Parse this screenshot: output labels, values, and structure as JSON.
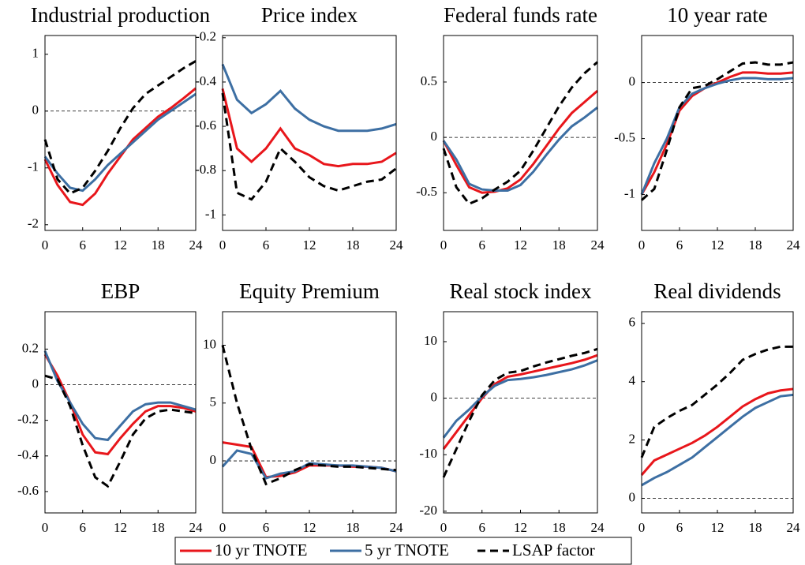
{
  "chart_data": [
    {
      "type": "line",
      "title": "Industrial production",
      "x": [
        0,
        2,
        4,
        6,
        8,
        10,
        12,
        14,
        16,
        18,
        20,
        22,
        24
      ],
      "xlim": [
        0,
        24
      ],
      "xticks": [
        0,
        6,
        12,
        18,
        24
      ],
      "ylim": [
        -2.1,
        1.33
      ],
      "yticks": [
        -2,
        -1,
        0,
        1
      ],
      "reference_line": 0,
      "series": [
        {
          "name": "10 yr TNOTE",
          "color": "#e8161b",
          "line_style": "solid",
          "values": [
            -0.85,
            -1.3,
            -1.6,
            -1.65,
            -1.45,
            -1.1,
            -0.8,
            -0.5,
            -0.3,
            -0.1,
            0.05,
            0.22,
            0.4
          ]
        },
        {
          "name": "5 yr TNOTE",
          "color": "#3d6fa3",
          "line_style": "solid",
          "values": [
            -0.8,
            -1.1,
            -1.35,
            -1.4,
            -1.2,
            -0.95,
            -0.75,
            -0.55,
            -0.35,
            -0.15,
            0,
            0.15,
            0.3
          ]
        },
        {
          "name": "LSAP factor",
          "color": "#000000",
          "line_style": "dashed",
          "values": [
            -0.5,
            -1.2,
            -1.45,
            -1.35,
            -1.05,
            -0.7,
            -0.3,
            0.05,
            0.3,
            0.45,
            0.6,
            0.75,
            0.88
          ]
        }
      ]
    },
    {
      "type": "line",
      "title": "Price index",
      "x": [
        0,
        2,
        4,
        6,
        8,
        10,
        12,
        14,
        16,
        18,
        20,
        22,
        24
      ],
      "xlim": [
        0,
        24
      ],
      "xticks": [
        0,
        6,
        12,
        18,
        24
      ],
      "ylim": [
        -1.07,
        -0.19
      ],
      "yticks": [
        -1,
        -0.8,
        -0.6,
        -0.4,
        -0.2
      ],
      "series": [
        {
          "name": "10 yr TNOTE",
          "color": "#e8161b",
          "line_style": "solid",
          "values": [
            -0.43,
            -0.7,
            -0.76,
            -0.7,
            -0.61,
            -0.7,
            -0.73,
            -0.77,
            -0.78,
            -0.77,
            -0.77,
            -0.76,
            -0.72
          ]
        },
        {
          "name": "5 yr TNOTE",
          "color": "#3d6fa3",
          "line_style": "solid",
          "values": [
            -0.32,
            -0.48,
            -0.54,
            -0.5,
            -0.44,
            -0.52,
            -0.57,
            -0.6,
            -0.62,
            -0.62,
            -0.62,
            -0.61,
            -0.59
          ]
        },
        {
          "name": "LSAP factor",
          "color": "#000000",
          "line_style": "dashed",
          "values": [
            -0.45,
            -0.9,
            -0.93,
            -0.85,
            -0.7,
            -0.76,
            -0.83,
            -0.87,
            -0.89,
            -0.87,
            -0.85,
            -0.84,
            -0.79
          ]
        }
      ]
    },
    {
      "type": "line",
      "title": "Federal funds rate",
      "x": [
        0,
        2,
        4,
        6,
        8,
        10,
        12,
        14,
        16,
        18,
        20,
        22,
        24
      ],
      "xlim": [
        0,
        24
      ],
      "xticks": [
        0,
        6,
        12,
        18,
        24
      ],
      "ylim": [
        -0.84,
        0.92
      ],
      "yticks": [
        -0.5,
        0,
        0.5
      ],
      "reference_line": 0,
      "series": [
        {
          "name": "10 yr TNOTE",
          "color": "#e8161b",
          "line_style": "solid",
          "values": [
            -0.03,
            -0.25,
            -0.45,
            -0.5,
            -0.49,
            -0.46,
            -0.38,
            -0.24,
            -0.08,
            0.08,
            0.22,
            0.32,
            0.42
          ]
        },
        {
          "name": "5 yr TNOTE",
          "color": "#3d6fa3",
          "line_style": "solid",
          "values": [
            -0.03,
            -0.2,
            -0.42,
            -0.47,
            -0.48,
            -0.48,
            -0.43,
            -0.31,
            -0.16,
            -0.02,
            0.1,
            0.18,
            0.27
          ]
        },
        {
          "name": "LSAP factor",
          "color": "#000000",
          "line_style": "dashed",
          "values": [
            -0.1,
            -0.45,
            -0.6,
            -0.55,
            -0.47,
            -0.4,
            -0.3,
            -0.12,
            0.08,
            0.28,
            0.45,
            0.58,
            0.68
          ]
        }
      ]
    },
    {
      "type": "line",
      "title": "10 year rate",
      "x": [
        0,
        2,
        4,
        6,
        8,
        10,
        12,
        14,
        16,
        18,
        20,
        22,
        24
      ],
      "xlim": [
        0,
        24
      ],
      "xticks": [
        0,
        6,
        12,
        18,
        24
      ],
      "ylim": [
        -1.32,
        0.42
      ],
      "yticks": [
        -1,
        -0.5,
        0
      ],
      "reference_line": 0,
      "series": [
        {
          "name": "10 yr TNOTE",
          "color": "#e8161b",
          "line_style": "solid",
          "values": [
            -1,
            -0.8,
            -0.55,
            -0.25,
            -0.12,
            -0.05,
            0,
            0.05,
            0.09,
            0.09,
            0.08,
            0.08,
            0.09
          ]
        },
        {
          "name": "5 yr TNOTE",
          "color": "#3d6fa3",
          "line_style": "solid",
          "values": [
            -1,
            -0.72,
            -0.5,
            -0.22,
            -0.1,
            -0.05,
            -0.01,
            0.02,
            0.04,
            0.04,
            0.03,
            0.03,
            0.04
          ]
        },
        {
          "name": "LSAP factor",
          "color": "#000000",
          "line_style": "dashed",
          "values": [
            -1.05,
            -0.95,
            -0.6,
            -0.22,
            -0.05,
            -0.03,
            0.03,
            0.1,
            0.17,
            0.18,
            0.16,
            0.16,
            0.18
          ]
        }
      ]
    },
    {
      "type": "line",
      "title": "EBP",
      "x": [
        0,
        2,
        4,
        6,
        8,
        10,
        12,
        14,
        16,
        18,
        20,
        22,
        24
      ],
      "xlim": [
        0,
        24
      ],
      "xticks": [
        0,
        6,
        12,
        18,
        24
      ],
      "ylim": [
        -0.72,
        0.41
      ],
      "yticks": [
        -0.6,
        -0.4,
        -0.2,
        0,
        0.2
      ],
      "reference_line": 0,
      "series": [
        {
          "name": "10 yr TNOTE",
          "color": "#e8161b",
          "line_style": "solid",
          "values": [
            0.17,
            0.05,
            -0.1,
            -0.28,
            -0.38,
            -0.39,
            -0.3,
            -0.22,
            -0.15,
            -0.12,
            -0.12,
            -0.13,
            -0.15
          ]
        },
        {
          "name": "5 yr TNOTE",
          "color": "#3d6fa3",
          "line_style": "solid",
          "values": [
            0.19,
            0.02,
            -0.1,
            -0.22,
            -0.3,
            -0.31,
            -0.23,
            -0.15,
            -0.11,
            -0.1,
            -0.1,
            -0.12,
            -0.14
          ]
        },
        {
          "name": "LSAP factor",
          "color": "#000000",
          "line_style": "dashed",
          "values": [
            0.05,
            0.03,
            -0.12,
            -0.34,
            -0.52,
            -0.57,
            -0.43,
            -0.28,
            -0.19,
            -0.15,
            -0.14,
            -0.15,
            -0.16
          ]
        }
      ]
    },
    {
      "type": "line",
      "title": "Equity Premium",
      "x": [
        0,
        2,
        4,
        6,
        8,
        10,
        12,
        14,
        16,
        18,
        20,
        22,
        24
      ],
      "xlim": [
        0,
        24
      ],
      "xticks": [
        0,
        6,
        12,
        18,
        24
      ],
      "ylim": [
        -4.5,
        12.9
      ],
      "yticks": [
        0,
        5,
        10
      ],
      "reference_line": 0,
      "series": [
        {
          "name": "10 yr TNOTE",
          "color": "#e8161b",
          "line_style": "solid",
          "values": [
            1.6,
            1.4,
            1.2,
            -1.4,
            -1.3,
            -1,
            -0.4,
            -0.4,
            -0.4,
            -0.5,
            -0.5,
            -0.6,
            -0.9
          ]
        },
        {
          "name": "5 yr TNOTE",
          "color": "#3d6fa3",
          "line_style": "solid",
          "values": [
            -0.5,
            0.9,
            0.6,
            -1.5,
            -1.1,
            -0.9,
            -0.2,
            -0.3,
            -0.4,
            -0.4,
            -0.5,
            -0.6,
            -0.9
          ]
        },
        {
          "name": "LSAP factor",
          "color": "#000000",
          "line_style": "dashed",
          "values": [
            10,
            5,
            1,
            -2,
            -1.5,
            -0.8,
            -0.3,
            -0.4,
            -0.5,
            -0.5,
            -0.6,
            -0.7,
            -0.8
          ]
        }
      ]
    },
    {
      "type": "line",
      "title": "Real stock index",
      "x": [
        0,
        2,
        4,
        6,
        8,
        10,
        12,
        14,
        16,
        18,
        20,
        22,
        24
      ],
      "xlim": [
        0,
        24
      ],
      "xticks": [
        0,
        6,
        12,
        18,
        24
      ],
      "ylim": [
        -20.3,
        15.3
      ],
      "yticks": [
        -20,
        -10,
        0,
        10
      ],
      "reference_line": 0,
      "series": [
        {
          "name": "10 yr TNOTE",
          "color": "#e8161b",
          "line_style": "solid",
          "values": [
            -9,
            -6,
            -3,
            0,
            2.5,
            3.8,
            4.2,
            4.7,
            5.2,
            5.7,
            6.2,
            6.8,
            7.6
          ]
        },
        {
          "name": "5 yr TNOTE",
          "color": "#3d6fa3",
          "line_style": "solid",
          "values": [
            -7,
            -4,
            -2,
            0.3,
            2.2,
            3.2,
            3.4,
            3.7,
            4.1,
            4.6,
            5.1,
            5.8,
            6.7
          ]
        },
        {
          "name": "LSAP factor",
          "color": "#000000",
          "line_style": "dashed",
          "values": [
            -14,
            -9,
            -4,
            0.5,
            3.2,
            4.5,
            4.8,
            5.6,
            6.3,
            6.9,
            7.5,
            8,
            8.7
          ]
        }
      ]
    },
    {
      "type": "line",
      "title": "Real dividends",
      "x": [
        0,
        2,
        4,
        6,
        8,
        10,
        12,
        14,
        16,
        18,
        20,
        22,
        24
      ],
      "xlim": [
        0,
        24
      ],
      "xticks": [
        0,
        6,
        12,
        18,
        24
      ],
      "ylim": [
        -0.5,
        6.4
      ],
      "yticks": [
        0,
        2,
        4,
        6
      ],
      "reference_line": 0,
      "series": [
        {
          "name": "10 yr TNOTE",
          "color": "#e8161b",
          "line_style": "solid",
          "values": [
            0.8,
            1.3,
            1.5,
            1.7,
            1.9,
            2.15,
            2.45,
            2.8,
            3.15,
            3.4,
            3.6,
            3.7,
            3.75
          ]
        },
        {
          "name": "5 yr TNOTE",
          "color": "#3d6fa3",
          "line_style": "solid",
          "values": [
            0.45,
            0.7,
            0.9,
            1.15,
            1.4,
            1.75,
            2.1,
            2.45,
            2.8,
            3.1,
            3.3,
            3.5,
            3.55
          ]
        },
        {
          "name": "LSAP factor",
          "color": "#000000",
          "line_style": "dashed",
          "values": [
            1.4,
            2.45,
            2.75,
            3.0,
            3.2,
            3.55,
            3.9,
            4.3,
            4.75,
            4.95,
            5.1,
            5.2,
            5.2
          ]
        }
      ]
    }
  ]
}
